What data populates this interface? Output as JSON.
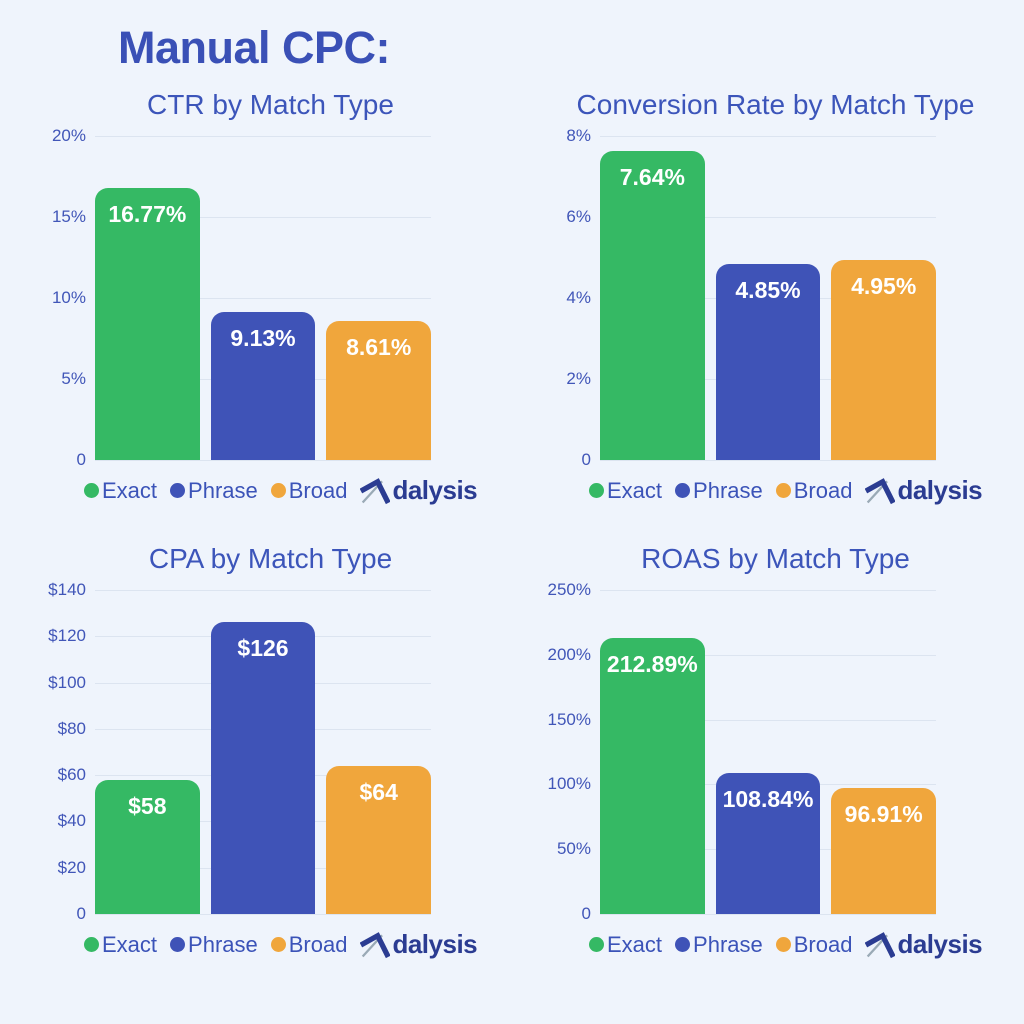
{
  "page": {
    "title": "Manual CPC:",
    "background_color": "#eff4fc",
    "title_color": "#3a50b6"
  },
  "legend": {
    "items": [
      {
        "label": "Exact",
        "color": "#35b964"
      },
      {
        "label": "Phrase",
        "color": "#3f53b7"
      },
      {
        "label": "Broad",
        "color": "#f0a63c"
      }
    ]
  },
  "logo": {
    "name": "Adalysis",
    "text_rest": "dalysis",
    "color": "#2b3c92",
    "accent_gray": "#9aaab6"
  },
  "colors": {
    "chart_title": "#3c55ba",
    "tick_label": "#4156b8",
    "gridline": "#dce4f0",
    "bar_label": "#ffffff"
  },
  "chart_data": [
    {
      "type": "bar",
      "title": "CTR by Match Type",
      "categories": [
        "Exact",
        "Phrase",
        "Broad"
      ],
      "values": [
        16.77,
        9.13,
        8.61
      ],
      "value_labels": [
        "16.77%",
        "9.13%",
        "8.61%"
      ],
      "yticks": [
        "20%",
        "15%",
        "10%",
        "5%",
        "0"
      ],
      "ylim": [
        0,
        20
      ],
      "grid": "on",
      "legend_position": "bottom"
    },
    {
      "type": "bar",
      "title": "Conversion Rate by Match Type",
      "categories": [
        "Exact",
        "Phrase",
        "Broad"
      ],
      "values": [
        7.64,
        4.85,
        4.95
      ],
      "value_labels": [
        "7.64%",
        "4.85%",
        "4.95%"
      ],
      "yticks": [
        "8%",
        "6%",
        "4%",
        "2%",
        "0"
      ],
      "ylim": [
        0,
        8
      ],
      "grid": "on",
      "legend_position": "bottom"
    },
    {
      "type": "bar",
      "title": "CPA by Match Type",
      "categories": [
        "Exact",
        "Phrase",
        "Broad"
      ],
      "values": [
        58,
        126,
        64
      ],
      "value_labels": [
        "$58",
        "$126",
        "$64"
      ],
      "yticks": [
        "$140",
        "$120",
        "$100",
        "$80",
        "$60",
        "$40",
        "$20",
        "0"
      ],
      "ylim": [
        0,
        140
      ],
      "grid": "on",
      "legend_position": "bottom"
    },
    {
      "type": "bar",
      "title": "ROAS by Match Type",
      "categories": [
        "Exact",
        "Phrase",
        "Broad"
      ],
      "values": [
        212.89,
        108.84,
        96.91
      ],
      "value_labels": [
        "212.89%",
        "108.84%",
        "96.91%"
      ],
      "yticks": [
        "250%",
        "200%",
        "150%",
        "100%",
        "50%",
        "0"
      ],
      "ylim": [
        0,
        250
      ],
      "grid": "on",
      "legend_position": "bottom"
    }
  ]
}
